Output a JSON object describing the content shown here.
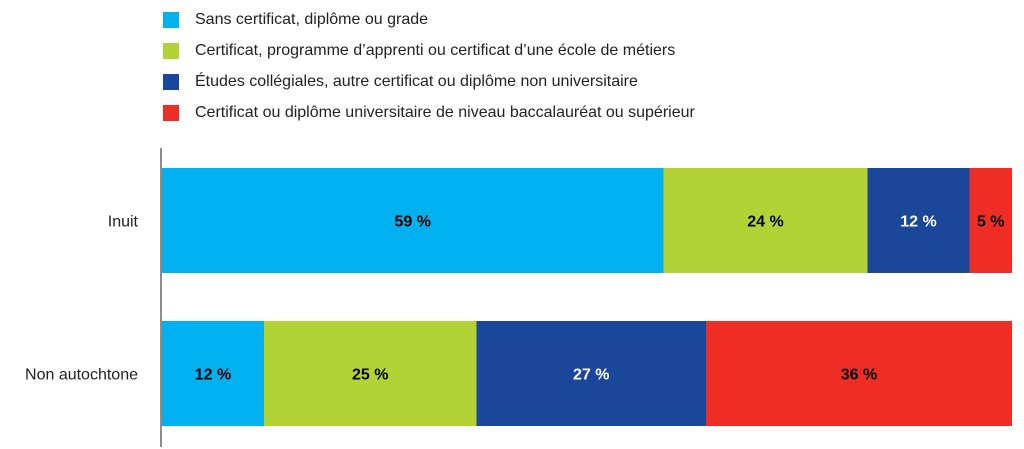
{
  "chart_data": {
    "type": "bar",
    "orientation": "horizontal",
    "stacked": true,
    "title": "",
    "xlabel": "",
    "ylabel": "",
    "xlim": [
      0,
      100
    ],
    "categories": [
      "Inuit",
      "Non autochtone"
    ],
    "series": [
      {
        "name": "Sans certificat, diplôme ou grade",
        "color": "#00B0EF",
        "label_color": "#000000",
        "values": [
          59,
          12
        ]
      },
      {
        "name": "Certificat, programme d’apprenti ou certificat d’une école de métiers",
        "color": "#B3D235",
        "label_color": "#000000",
        "values": [
          24,
          25
        ]
      },
      {
        "name": "Études collégiales, autre certificat ou diplôme non universitaire",
        "color": "#1B479A",
        "label_color": "#FFFFFF",
        "values": [
          12,
          27
        ]
      },
      {
        "name": "Certificat ou diplôme universitaire de niveau baccalauréat ou supérieur",
        "color": "#EE2E24",
        "label_color": "#000000",
        "values": [
          5,
          36
        ]
      }
    ],
    "value_suffix": " %",
    "legend_position": "top-left",
    "grid": false
  }
}
